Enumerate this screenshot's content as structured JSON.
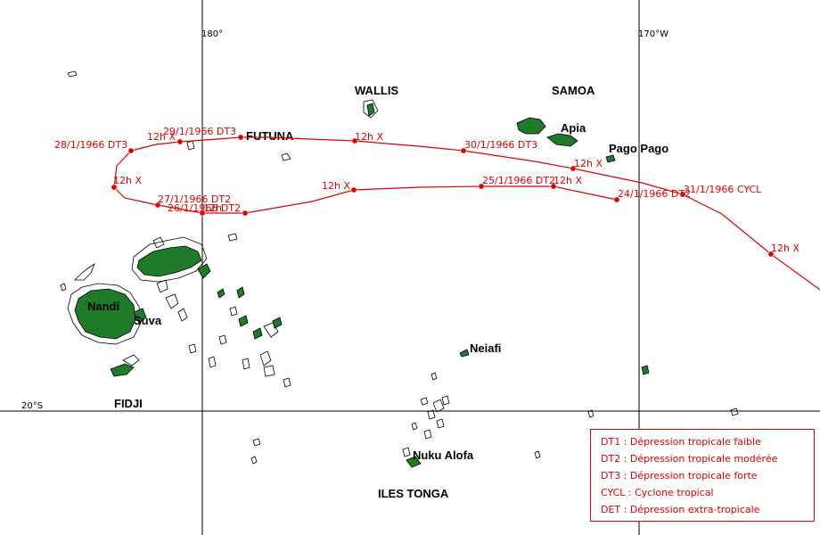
{
  "grid": {
    "lon_180": "180°",
    "lon_170w": "170°W",
    "lat_20s": "20°S"
  },
  "places": {
    "wallis": "WALLIS",
    "samoa": "SAMOA",
    "apia": "Apia",
    "pago_pago": "Pago Pago",
    "futuna": "FUTUNA",
    "nandi": "Nandi",
    "suva": "Suva",
    "fidji": "FIDJI",
    "neiafi": "Neiafi",
    "nuku_alofa": "Nuku Alofa",
    "iles_tonga": "ILES TONGA"
  },
  "track_labels": {
    "d24": "24/1/1966  DT2",
    "h24": "12h  X",
    "d25": "25/1/1966  DT2",
    "h25": "12h  X",
    "d26": "26/1/1966  DT2",
    "h26": "12h",
    "d27": "27/1/1966  DT2",
    "h27": "12h  X",
    "d28": "28/1/1966  DT3",
    "h28": "12h  X",
    "d29": "29/1/1966  DT3",
    "h29": "12h  X",
    "d30": "30/1/1966  DT3",
    "h30": "12h  X",
    "d31": "31/1/1966  CYCL",
    "h31": "12h  X"
  },
  "legend": {
    "dt1": "DT1 : Dépression tropicale faible",
    "dt2": "DT2 : Dépression tropicale modérée",
    "dt3": "DT3 : Dépression tropicale forte",
    "cycl": "CYCL : Cyclone tropical",
    "det": "DET : Dépression extra-tropicale"
  },
  "colors": {
    "track": "#e00000",
    "land": "#1f7a2a"
  }
}
